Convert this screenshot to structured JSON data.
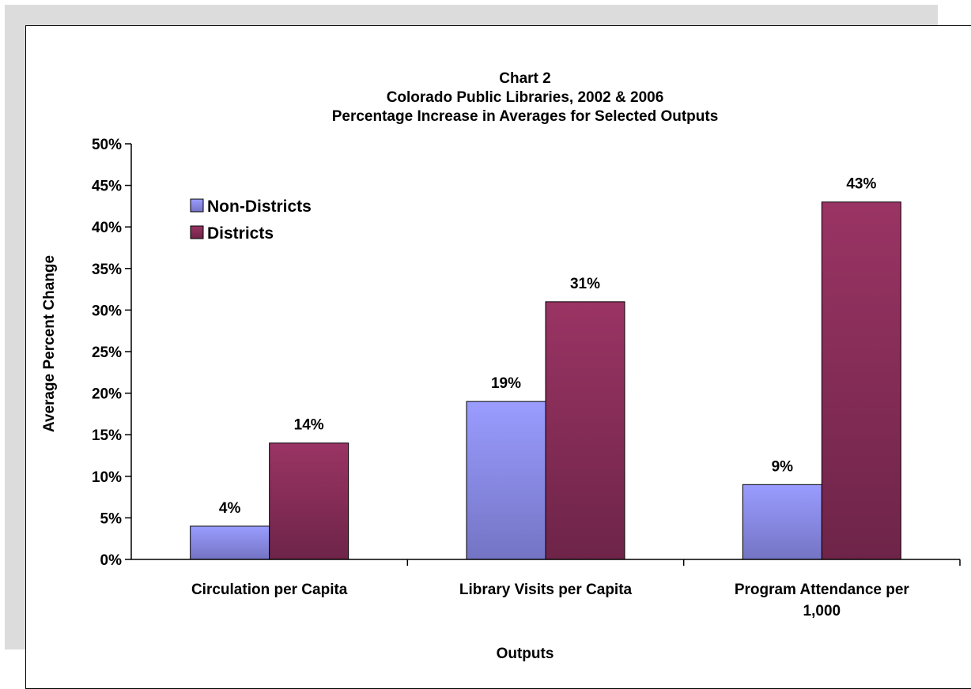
{
  "chart_data": {
    "type": "bar",
    "title": [
      "Chart 2",
      "Colorado Public Libraries, 2002 & 2006",
      "Percentage Increase in Averages for Selected Outputs"
    ],
    "xlabel": "Outputs",
    "ylabel": "Average Percent Change",
    "categories": [
      [
        "Circulation per Capita"
      ],
      [
        "Library Visits per Capita"
      ],
      [
        "Program Attendance per",
        "1,000"
      ]
    ],
    "series": [
      {
        "name": "Non-Districts",
        "values": [
          4,
          19,
          9
        ],
        "color_top": "#9a9cff",
        "color_bottom": "#7474c4"
      },
      {
        "name": "Districts",
        "values": [
          14,
          31,
          43
        ],
        "color_top": "#9a3464",
        "color_bottom": "#6e2448"
      }
    ],
    "data_labels": [
      [
        "4%",
        "19%",
        "9%"
      ],
      [
        "14%",
        "31%",
        "43%"
      ]
    ],
    "yticks": [
      "0%",
      "5%",
      "10%",
      "15%",
      "20%",
      "25%",
      "30%",
      "35%",
      "40%",
      "45%",
      "50%"
    ],
    "ylim": [
      0,
      50
    ],
    "grid": false,
    "legend_position": "top-left"
  }
}
